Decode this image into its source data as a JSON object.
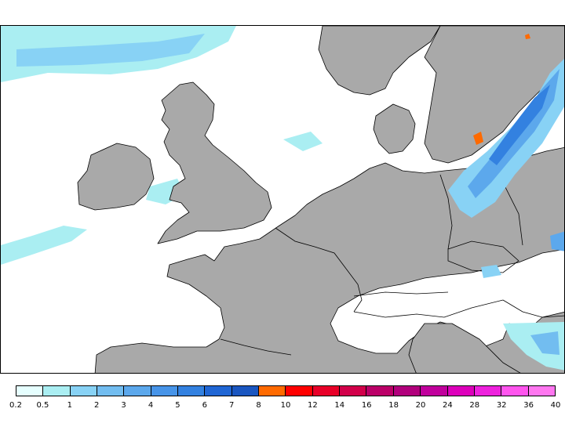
{
  "map": {
    "region": "Western Europe",
    "land_color": "#a9a9a9",
    "sea_color": "#ffffff",
    "border_color": "#000000"
  },
  "legend": {
    "swatches": [
      "#e6ffff",
      "#aaeef2",
      "#88d2f5",
      "#72bdf0",
      "#5ca8ec",
      "#4794e8",
      "#3381e0",
      "#2066d4",
      "#1a56c0",
      "#ff6a00",
      "#ff0000",
      "#e80028",
      "#d2004a",
      "#bb0068",
      "#b1007c",
      "#c0009c",
      "#dd00bb",
      "#ee22dd",
      "#ff55ee",
      "#ff77f0"
    ],
    "ticks": [
      "0.2",
      "0.5",
      "1",
      "2",
      "3",
      "4",
      "5",
      "6",
      "7",
      "8",
      "10",
      "12",
      "14",
      "16",
      "18",
      "20",
      "24",
      "28",
      "32",
      "36",
      "40"
    ]
  }
}
